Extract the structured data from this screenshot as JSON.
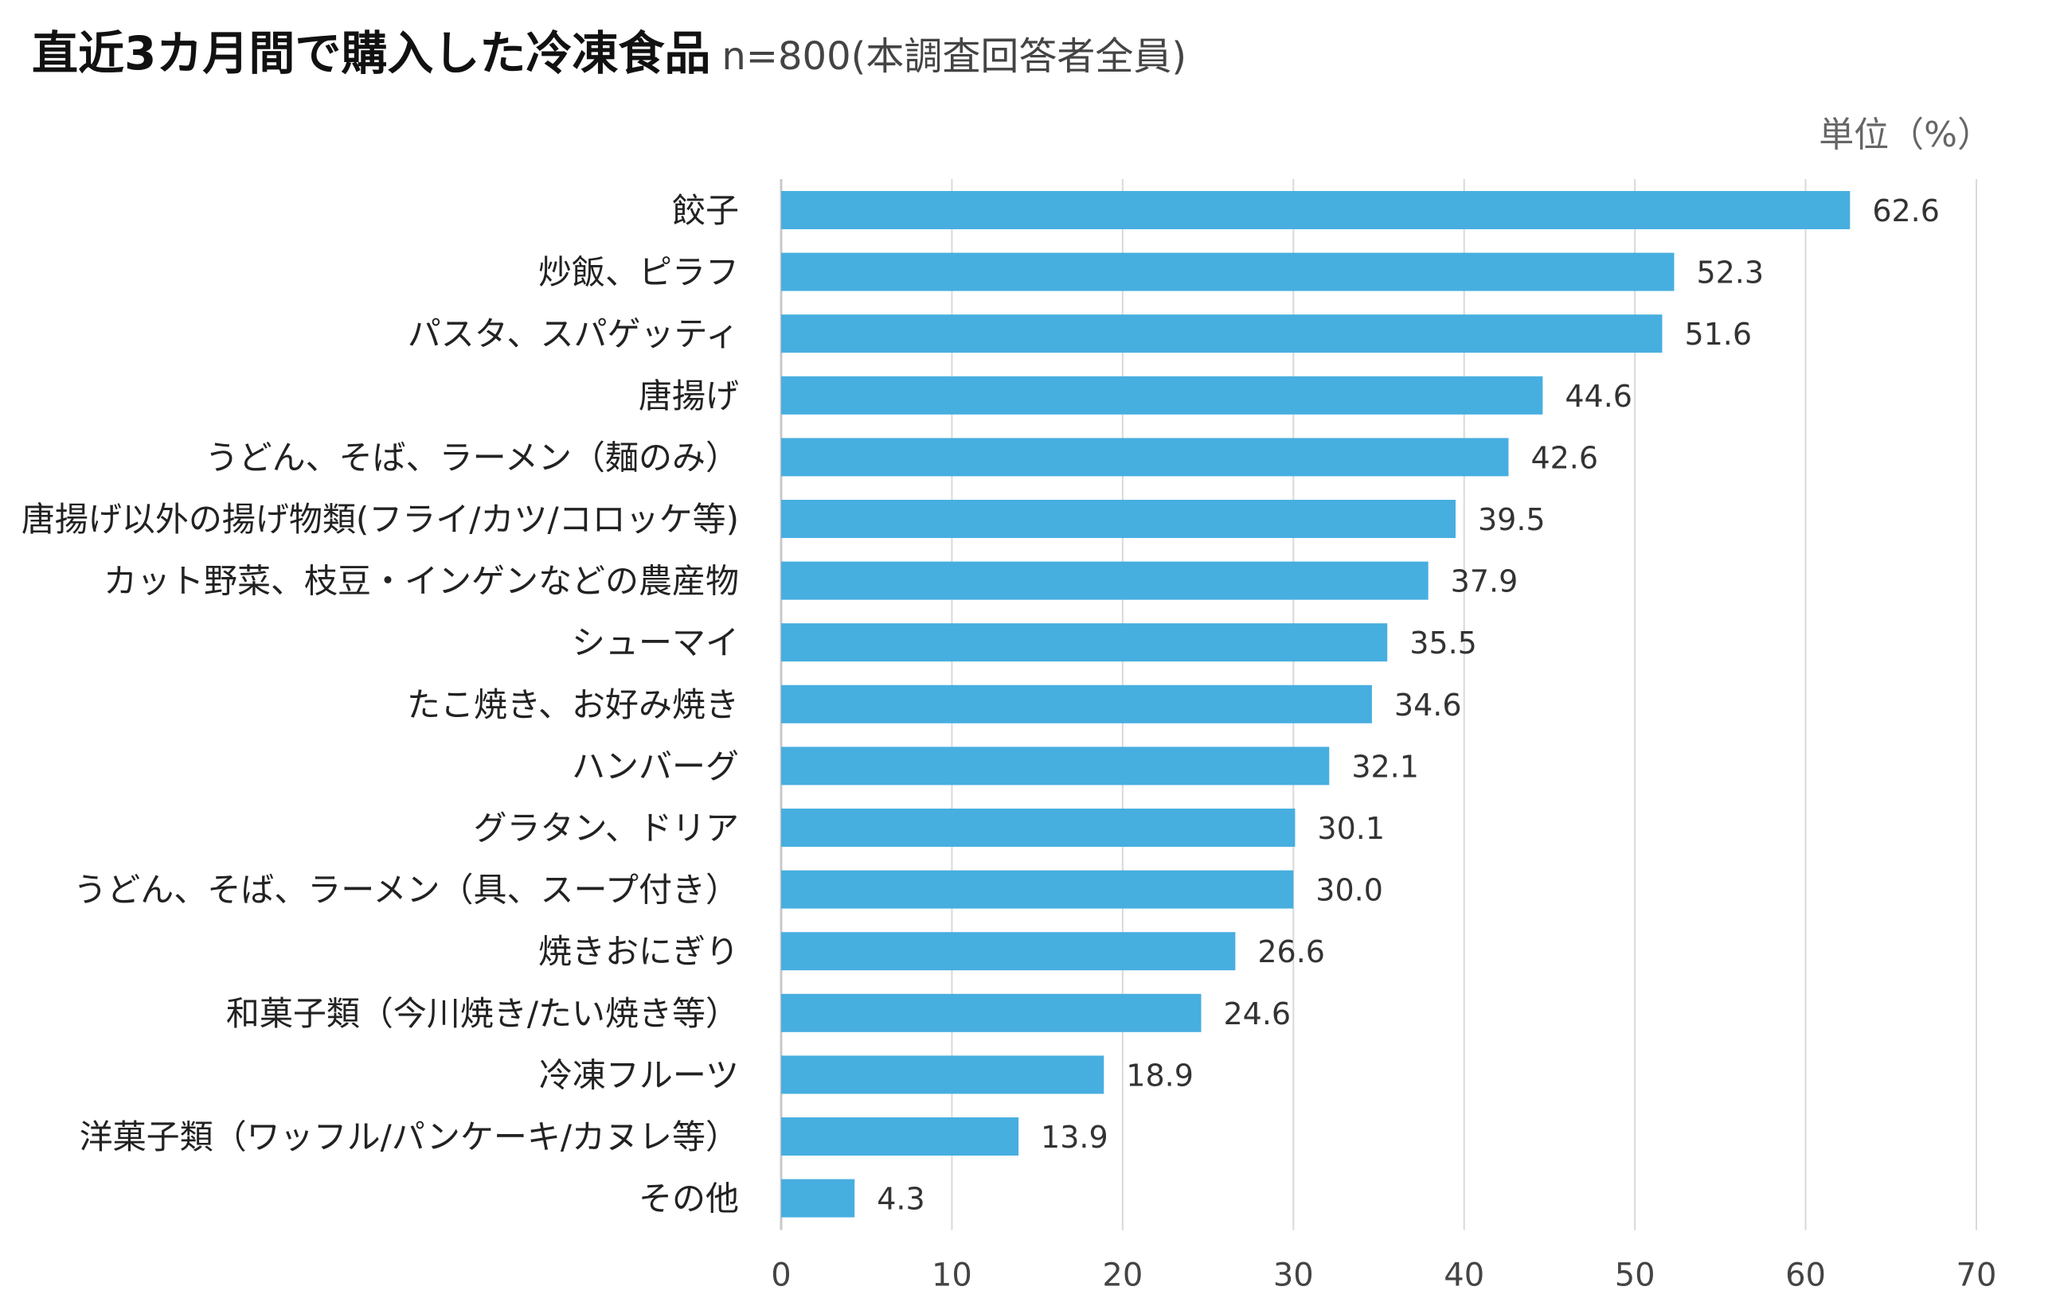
{
  "title": "直近3カ月間で購入した冷凍食品",
  "subtitle": "n=800(本調査回答者全員)",
  "unit_label": "単位（%）",
  "chart_data": {
    "type": "bar",
    "orientation": "horizontal",
    "title": "直近3カ月間で購入した冷凍食品",
    "subtitle": "n=800(本調査回答者全員)",
    "xlabel": "",
    "ylabel": "",
    "unit": "%",
    "xlim": [
      0,
      70
    ],
    "xticks": [
      0,
      10,
      20,
      30,
      40,
      50,
      60,
      70
    ],
    "gridlines": true,
    "bar_color": "#47AEE0",
    "categories": [
      "餃子",
      "炒飯、ピラフ",
      "パスタ、スパゲッティ",
      "唐揚げ",
      "うどん、そば、ラーメン（麺のみ）",
      "唐揚げ以外の揚げ物類(フライ/カツ/コロッケ等)",
      "カット野菜、枝豆・インゲンなどの農産物",
      "シューマイ",
      "たこ焼き、お好み焼き",
      "ハンバーグ",
      "グラタン、ドリア",
      "うどん、そば、ラーメン（具、スープ付き）",
      "焼きおにぎり",
      "和菓子類（今川焼き/たい焼き等）",
      "冷凍フルーツ",
      "洋菓子類（ワッフル/パンケーキ/カヌレ等）",
      "その他"
    ],
    "values": [
      62.6,
      52.3,
      51.6,
      44.6,
      42.6,
      39.5,
      37.9,
      35.5,
      34.6,
      32.1,
      30.1,
      30.0,
      26.6,
      24.6,
      18.9,
      13.9,
      4.3
    ],
    "value_labels": [
      "62.6",
      "52.3",
      "51.6",
      "44.6",
      "42.6",
      "39.5",
      "37.9",
      "35.5",
      "34.6",
      "32.1",
      "30.1",
      "30.0",
      "26.6",
      "24.6",
      "18.9",
      "13.9",
      "4.3"
    ]
  }
}
